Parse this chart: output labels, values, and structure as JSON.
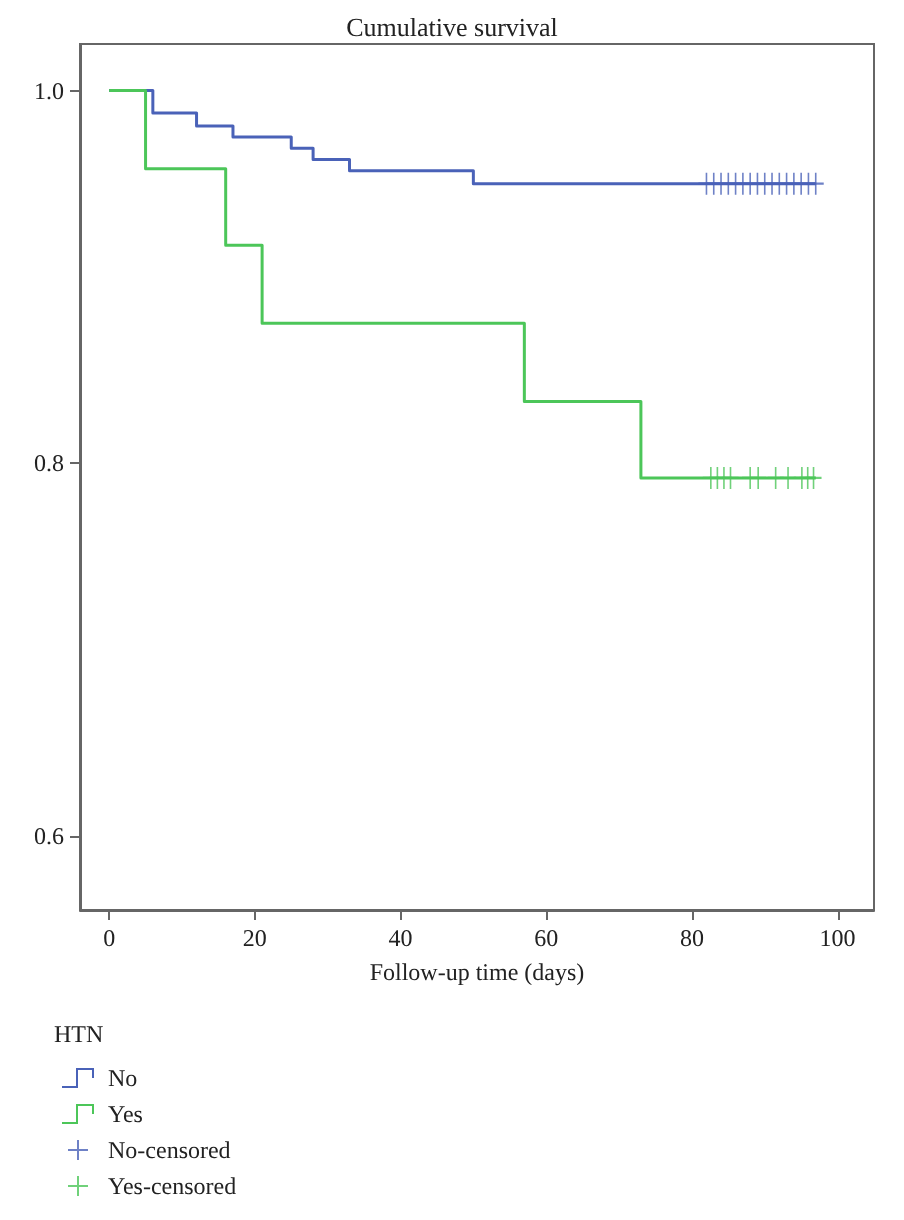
{
  "chart_data": {
    "type": "step",
    "title": "Cumulative survival",
    "xlabel": "Follow-up time (days)",
    "legend_title": "HTN",
    "legend": "bottom left",
    "xlim": [
      -4,
      105
    ],
    "xticks": [
      0,
      20,
      40,
      60,
      80,
      100
    ],
    "ylim": [
      0.56,
      1.025
    ],
    "yticks": [
      {
        "value": 0.6,
        "label": "0.6"
      },
      {
        "value": 0.8,
        "label": "0.8"
      },
      {
        "value": 1,
        "label": "1.0"
      }
    ],
    "grid": false,
    "series": [
      {
        "name": "No",
        "marker": "none",
        "color": "#4a62b8",
        "x": [
          0,
          6,
          12,
          17,
          25,
          28,
          33,
          50,
          97
        ],
        "values": [
          1,
          0.988,
          0.981,
          0.975,
          0.969,
          0.963,
          0.957,
          0.95,
          0.95
        ]
      },
      {
        "name": "Yes",
        "marker": "none",
        "color": "#4cc659",
        "x": [
          0,
          5,
          16,
          21,
          57,
          73,
          97
        ],
        "values": [
          1,
          0.958,
          0.917,
          0.875,
          0.833,
          0.792,
          0.792
        ]
      },
      {
        "name": "No-censored",
        "type": "scatter",
        "marker": "cross",
        "color": "#4a62b8",
        "x": [
          82,
          83,
          84,
          85,
          86,
          87,
          88,
          89,
          90,
          91,
          92,
          93,
          94,
          95,
          96,
          97
        ],
        "values": [
          0.95,
          0.95,
          0.95,
          0.95,
          0.95,
          0.95,
          0.95,
          0.95,
          0.95,
          0.95,
          0.95,
          0.95,
          0.95,
          0.95,
          0.95,
          0.95
        ]
      },
      {
        "name": "Yes-censored",
        "type": "scatter",
        "marker": "cross",
        "color": "#4cc659",
        "x": [
          82.6,
          83.5,
          84.4,
          85.3,
          88,
          89.1,
          91.5,
          93.2,
          95.1,
          95.9,
          96.7
        ],
        "values": [
          0.792,
          0.792,
          0.792,
          0.792,
          0.792,
          0.792,
          0.792,
          0.792,
          0.792,
          0.792,
          0.792
        ]
      }
    ]
  }
}
